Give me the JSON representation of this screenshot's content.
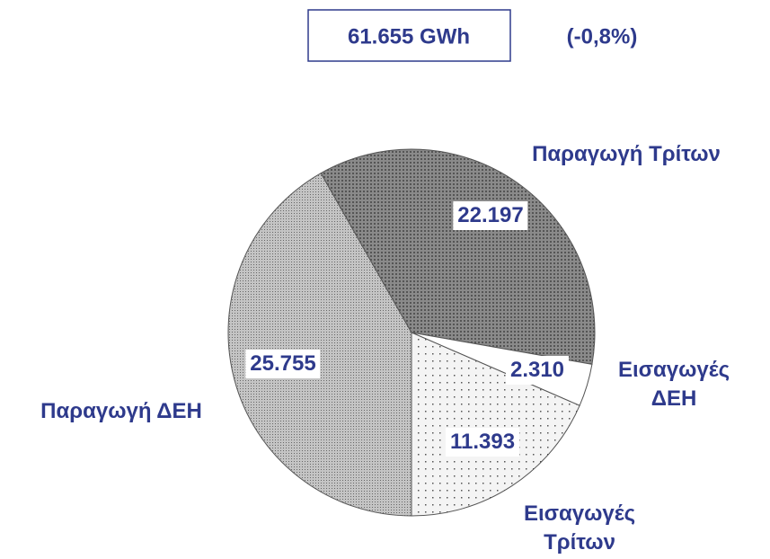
{
  "chart_data": {
    "type": "pie",
    "title": "61.655 GWh",
    "subtitle": "(-0,8%)",
    "categories": [
      "Παραγωγή ΔΕΗ",
      "Παραγωγή Τρίτων",
      "Εισαγωγές ΔΕΗ",
      "Εισαγωγές Τρίτων"
    ],
    "values": [
      25755,
      22197,
      2310,
      11393
    ],
    "value_labels": [
      "25.755",
      "22.197",
      "2.310",
      "11.393"
    ],
    "colors": [
      "#c4c4c4",
      "#8a8a8a",
      "#ffffff",
      "#f4f4f4"
    ]
  }
}
